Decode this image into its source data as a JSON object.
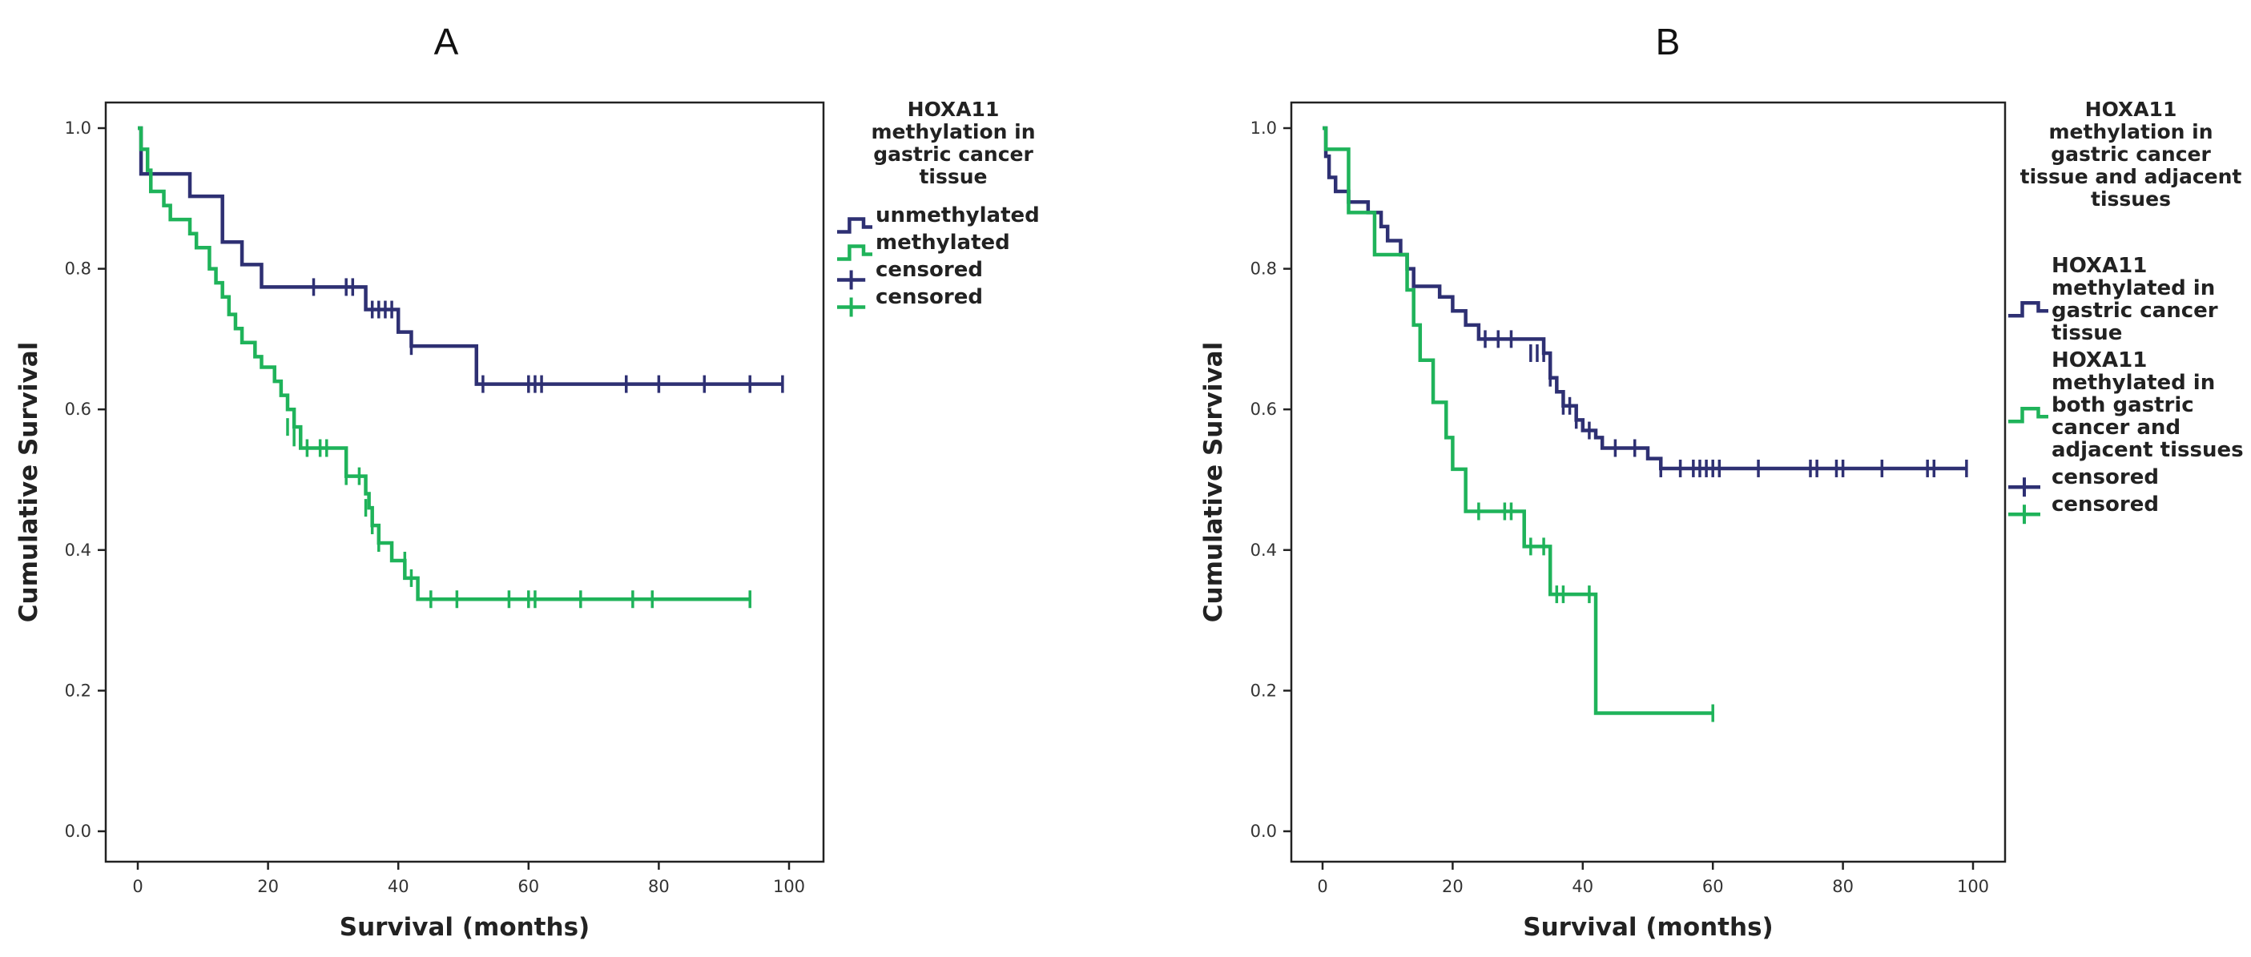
{
  "colors": {
    "navy": "#2e3073",
    "green": "#1fb35a"
  },
  "chart_data": [
    {
      "panel": "A",
      "type": "line",
      "subtype": "kaplan-meier",
      "xlabel": "Survival (months)",
      "ylabel": "Cumulative Survival",
      "xlim": [
        0,
        100
      ],
      "ylim": [
        0,
        1.0
      ],
      "xticks": [
        "0",
        "20",
        "40",
        "60",
        "80",
        "100"
      ],
      "yticks": [
        "0.0",
        "0.2",
        "0.4",
        "0.6",
        "0.8",
        "1.0"
      ],
      "legend_title": [
        "HOXA11",
        "methylation in",
        "gastric cancer",
        "tissue"
      ],
      "legend_items": [
        {
          "label": [
            "unmethylated"
          ],
          "series": 0,
          "kind": "line"
        },
        {
          "label": [
            "methylated"
          ],
          "series": 1,
          "kind": "line"
        },
        {
          "label": [
            "censored"
          ],
          "series": 0,
          "kind": "censor"
        },
        {
          "label": [
            "censored"
          ],
          "series": 1,
          "kind": "censor"
        }
      ],
      "series": [
        {
          "name": "unmethylated",
          "color": "#2e3073",
          "steps": [
            [
              0,
              1.0
            ],
            [
              0.5,
              0.935
            ],
            [
              8,
              0.903
            ],
            [
              13,
              0.838
            ],
            [
              16,
              0.806
            ],
            [
              19,
              0.774
            ],
            [
              35,
              0.742
            ],
            [
              40,
              0.71
            ],
            [
              42,
              0.69
            ],
            [
              52,
              0.636
            ]
          ],
          "end": 99,
          "censored": [
            [
              27,
              0.774
            ],
            [
              32,
              0.774
            ],
            [
              33,
              0.774
            ],
            [
              36,
              0.742
            ],
            [
              37,
              0.742
            ],
            [
              38,
              0.742
            ],
            [
              39,
              0.742
            ],
            [
              42,
              0.69
            ],
            [
              53,
              0.636
            ],
            [
              60,
              0.636
            ],
            [
              61,
              0.636
            ],
            [
              62,
              0.636
            ],
            [
              75,
              0.636
            ],
            [
              80,
              0.636
            ],
            [
              87,
              0.636
            ],
            [
              94,
              0.636
            ],
            [
              99,
              0.636
            ]
          ]
        },
        {
          "name": "methylated",
          "color": "#1fb35a",
          "steps": [
            [
              0,
              1.0
            ],
            [
              0.5,
              0.97
            ],
            [
              1.5,
              0.94
            ],
            [
              2,
              0.91
            ],
            [
              4,
              0.89
            ],
            [
              5,
              0.87
            ],
            [
              8,
              0.85
            ],
            [
              9,
              0.83
            ],
            [
              11,
              0.8
            ],
            [
              12,
              0.78
            ],
            [
              13,
              0.76
            ],
            [
              14,
              0.735
            ],
            [
              15,
              0.715
            ],
            [
              16,
              0.695
            ],
            [
              18,
              0.675
            ],
            [
              19,
              0.66
            ],
            [
              21,
              0.64
            ],
            [
              22,
              0.62
            ],
            [
              23,
              0.6
            ],
            [
              24,
              0.575
            ],
            [
              25,
              0.545
            ],
            [
              32,
              0.505
            ],
            [
              35,
              0.48
            ],
            [
              35.5,
              0.46
            ],
            [
              36,
              0.435
            ],
            [
              37,
              0.41
            ],
            [
              39,
              0.385
            ],
            [
              41,
              0.36
            ],
            [
              43,
              0.33
            ]
          ],
          "end": 94,
          "censored": [
            [
              23,
              0.575
            ],
            [
              24,
              0.56
            ],
            [
              26,
              0.545
            ],
            [
              28,
              0.545
            ],
            [
              29,
              0.545
            ],
            [
              32,
              0.505
            ],
            [
              34,
              0.505
            ],
            [
              35,
              0.46
            ],
            [
              36,
              0.435
            ],
            [
              37,
              0.41
            ],
            [
              41,
              0.385
            ],
            [
              42,
              0.36
            ],
            [
              45,
              0.33
            ],
            [
              49,
              0.33
            ],
            [
              57,
              0.33
            ],
            [
              60,
              0.33
            ],
            [
              61,
              0.33
            ],
            [
              68,
              0.33
            ],
            [
              76,
              0.33
            ],
            [
              79,
              0.33
            ],
            [
              94,
              0.33
            ]
          ]
        }
      ]
    },
    {
      "panel": "B",
      "type": "line",
      "subtype": "kaplan-meier",
      "xlabel": "Survival (months)",
      "ylabel": "Cumulative Survival",
      "xlim": [
        0,
        100
      ],
      "ylim": [
        0,
        1.0
      ],
      "xticks": [
        "0",
        "20",
        "40",
        "60",
        "80",
        "100"
      ],
      "yticks": [
        "0.0",
        "0.2",
        "0.4",
        "0.6",
        "0.8",
        "1.0"
      ],
      "legend_title": [
        "HOXA11",
        "methylation in",
        "gastric cancer",
        "tissue and adjacent",
        "tissues"
      ],
      "legend_items": [
        {
          "label": [
            "HOXA11",
            "methylated in",
            "gastric cancer",
            "tissue"
          ],
          "series": 0,
          "kind": "line"
        },
        {
          "label": [
            "HOXA11",
            "methylated in",
            "both gastric",
            "cancer and",
            "adjacent tissues"
          ],
          "series": 1,
          "kind": "line"
        },
        {
          "label": [
            "censored"
          ],
          "series": 0,
          "kind": "censor"
        },
        {
          "label": [
            "censored"
          ],
          "series": 1,
          "kind": "censor"
        }
      ],
      "series": [
        {
          "name": "HOXA11 methylated in gastric cancer tissue",
          "color": "#2e3073",
          "steps": [
            [
              0,
              1.0
            ],
            [
              0.5,
              0.96
            ],
            [
              1,
              0.93
            ],
            [
              2,
              0.91
            ],
            [
              4,
              0.895
            ],
            [
              7,
              0.88
            ],
            [
              9,
              0.86
            ],
            [
              10,
              0.84
            ],
            [
              12,
              0.82
            ],
            [
              13,
              0.8
            ],
            [
              14,
              0.775
            ],
            [
              18,
              0.76
            ],
            [
              20,
              0.74
            ],
            [
              22,
              0.72
            ],
            [
              24,
              0.7
            ],
            [
              34,
              0.68
            ],
            [
              35,
              0.645
            ],
            [
              36,
              0.625
            ],
            [
              37,
              0.605
            ],
            [
              39,
              0.585
            ],
            [
              40,
              0.57
            ],
            [
              42,
              0.56
            ],
            [
              43,
              0.545
            ],
            [
              50,
              0.53
            ],
            [
              52,
              0.516
            ]
          ],
          "end": 99,
          "censored": [
            [
              25,
              0.7
            ],
            [
              27,
              0.7
            ],
            [
              29,
              0.7
            ],
            [
              32,
              0.68
            ],
            [
              33,
              0.68
            ],
            [
              34,
              0.68
            ],
            [
              35,
              0.645
            ],
            [
              37,
              0.605
            ],
            [
              38,
              0.605
            ],
            [
              39,
              0.585
            ],
            [
              41,
              0.57
            ],
            [
              45,
              0.545
            ],
            [
              48,
              0.545
            ],
            [
              52,
              0.516
            ],
            [
              55,
              0.516
            ],
            [
              57,
              0.516
            ],
            [
              58,
              0.516
            ],
            [
              59,
              0.516
            ],
            [
              60,
              0.516
            ],
            [
              61,
              0.516
            ],
            [
              67,
              0.516
            ],
            [
              75,
              0.516
            ],
            [
              76,
              0.516
            ],
            [
              79,
              0.516
            ],
            [
              80,
              0.516
            ],
            [
              86,
              0.516
            ],
            [
              93,
              0.516
            ],
            [
              94,
              0.516
            ],
            [
              99,
              0.516
            ]
          ]
        },
        {
          "name": "HOXA11 methylated in both gastric cancer and adjacent tissues",
          "color": "#1fb35a",
          "steps": [
            [
              0,
              1.0
            ],
            [
              0.5,
              0.97
            ],
            [
              4,
              0.88
            ],
            [
              8,
              0.82
            ],
            [
              13,
              0.77
            ],
            [
              14,
              0.72
            ],
            [
              15,
              0.67
            ],
            [
              17,
              0.61
            ],
            [
              19,
              0.56
            ],
            [
              20,
              0.515
            ],
            [
              22,
              0.455
            ],
            [
              31,
              0.405
            ],
            [
              35,
              0.337
            ],
            [
              42,
              0.168
            ]
          ],
          "end": 60,
          "censored": [
            [
              24,
              0.455
            ],
            [
              28,
              0.455
            ],
            [
              29,
              0.455
            ],
            [
              32,
              0.405
            ],
            [
              34,
              0.405
            ],
            [
              36,
              0.337
            ],
            [
              37,
              0.337
            ],
            [
              41,
              0.337
            ],
            [
              60,
              0.168
            ]
          ]
        }
      ]
    }
  ]
}
